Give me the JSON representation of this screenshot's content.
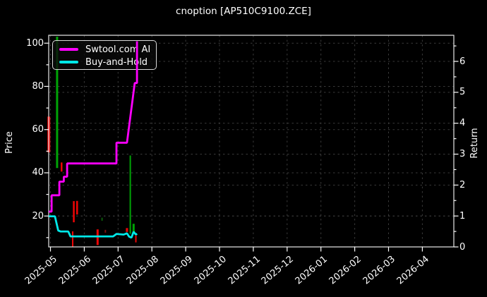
{
  "title": "cnoption [AP510C9100.ZCE]",
  "axes": {
    "left_label": "Price",
    "right_label": "Return",
    "left_ticks": [
      20,
      40,
      60,
      80,
      100
    ],
    "left_minor_ticks": [
      10,
      30,
      50,
      70,
      90
    ],
    "right_ticks": [
      0,
      1,
      2,
      3,
      4,
      5,
      6
    ],
    "right_minor_ticks": [
      0.5,
      1.5,
      2.5,
      3.5,
      4.5,
      5.5,
      6.5
    ],
    "x_ticks": [
      "2025-05",
      "2025-06",
      "2025-07",
      "2025-08",
      "2025-09",
      "2025-10",
      "2025-11",
      "2025-12",
      "2026-01",
      "2026-02",
      "2026-03",
      "2026-04"
    ]
  },
  "legend": {
    "items": [
      {
        "label": "Swtool.com AI",
        "color": "#ff00ff"
      },
      {
        "label": "Buy-and-Hold",
        "color": "#00e8e8"
      }
    ]
  },
  "chart_data": {
    "type": "line",
    "overlays": "candlestick",
    "title": "cnoption [AP510C9100.ZCE]",
    "xlabel": "",
    "ylabel_left": "Price",
    "ylabel_right": "Return",
    "x_range": [
      "2025-04-29",
      "2026-04-30"
    ],
    "ylim_left": [
      5.6,
      103.7
    ],
    "ylim_right": [
      0,
      6.85
    ],
    "grid": true,
    "legend_position": "upper-left",
    "colors": {
      "red": "#ee0505",
      "green": "#00a306",
      "dimred": "#7c1010",
      "dimgreen": "#0c5c0c",
      "grid": "#3a3a3a",
      "frame": "#e8e8e8",
      "swtool": "#ff00ff",
      "buyhold": "#00e8e8"
    },
    "series": [
      {
        "name": "Swtool.com AI",
        "axis": "return",
        "color": "swtool",
        "points": [
          [
            "2025-04-30",
            1.14
          ],
          [
            "2025-05-02",
            1.14
          ],
          [
            "2025-05-02",
            1.67
          ],
          [
            "2025-05-09",
            1.67
          ],
          [
            "2025-05-09",
            2.11
          ],
          [
            "2025-05-13",
            2.11
          ],
          [
            "2025-05-13",
            2.27
          ],
          [
            "2025-05-16",
            2.27
          ],
          [
            "2025-05-16",
            2.7
          ],
          [
            "2025-06-30",
            2.7
          ],
          [
            "2025-06-30",
            3.37
          ],
          [
            "2025-07-09",
            3.37
          ],
          [
            "2025-07-16",
            5.3
          ],
          [
            "2025-07-18",
            5.3
          ],
          [
            "2025-07-18",
            6.65
          ]
        ]
      },
      {
        "name": "Buy-and-Hold",
        "axis": "return",
        "color": "buyhold",
        "points": [
          [
            "2025-04-30",
            0.99
          ],
          [
            "2025-05-05",
            0.99
          ],
          [
            "2025-05-08",
            0.53
          ],
          [
            "2025-05-10",
            0.5
          ],
          [
            "2025-05-17",
            0.5
          ],
          [
            "2025-05-19",
            0.34
          ],
          [
            "2025-06-27",
            0.34
          ],
          [
            "2025-06-30",
            0.42
          ],
          [
            "2025-07-06",
            0.4
          ],
          [
            "2025-07-09",
            0.44
          ],
          [
            "2025-07-11",
            0.33
          ],
          [
            "2025-07-13",
            0.3
          ],
          [
            "2025-07-15",
            0.49
          ],
          [
            "2025-07-17",
            0.4
          ],
          [
            "2025-07-18",
            0.43
          ]
        ]
      }
    ],
    "candles": [
      {
        "date": "2025-04-30",
        "low": 49.5,
        "high": 66.0,
        "color": "red",
        "w": 4
      },
      {
        "date": "2025-05-07",
        "low": 42.2,
        "high": 103.0,
        "color": "green",
        "w": 3
      },
      {
        "date": "2025-05-11",
        "low": 40.6,
        "high": 44.8,
        "color": "red",
        "w": 2.5
      },
      {
        "date": "2025-05-21",
        "low": 5.6,
        "high": 12.9,
        "color": "red",
        "w": 2
      },
      {
        "date": "2025-05-22",
        "low": 17.1,
        "high": 26.9,
        "color": "red",
        "w": 2.5
      },
      {
        "date": "2025-05-25",
        "low": 20.7,
        "high": 27.0,
        "color": "red",
        "w": 2.5
      },
      {
        "date": "2025-06-13",
        "low": 6.6,
        "high": 13.8,
        "color": "red",
        "w": 3
      },
      {
        "date": "2025-06-17",
        "low": 17.8,
        "high": 19.2,
        "color": "dimgreen",
        "w": 2
      },
      {
        "date": "2025-06-20",
        "low": 12.3,
        "high": 13.6,
        "color": "dimred",
        "w": 2
      },
      {
        "date": "2025-07-09",
        "low": 12.6,
        "high": 14.4,
        "color": "red",
        "w": 3
      },
      {
        "date": "2025-07-12",
        "low": 11.8,
        "high": 48.0,
        "color": "green",
        "w": 2
      },
      {
        "date": "2025-07-15",
        "low": 12.6,
        "high": 16.4,
        "color": "green",
        "w": 3
      },
      {
        "date": "2025-07-17",
        "low": 7.8,
        "high": 11.0,
        "color": "red",
        "w": 2
      }
    ]
  }
}
